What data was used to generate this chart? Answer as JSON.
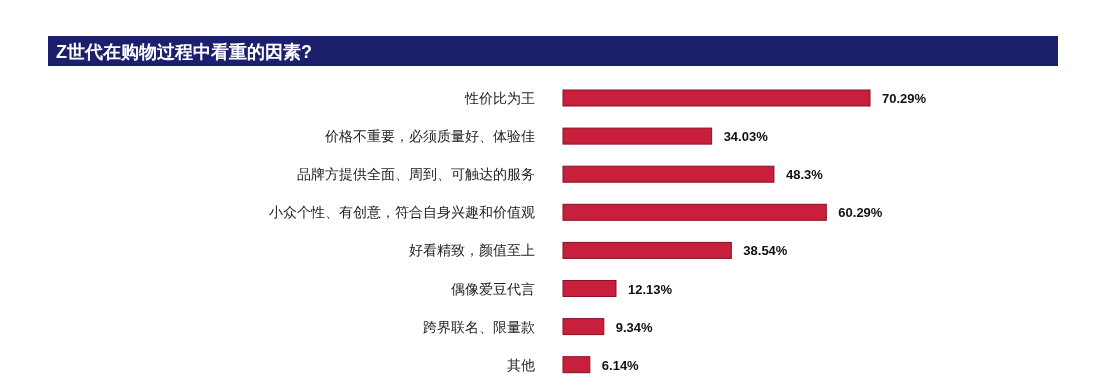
{
  "chart_data": {
    "type": "bar",
    "orientation": "horizontal",
    "title": "Z世代在购物过程中看重的因素?",
    "categories": [
      "性价比为王",
      "价格不重要，必须质量好、体验佳",
      "品牌方提供全面、周到、可触达的服务",
      "小众个性、有创意，符合自身兴趣和价值观",
      "好看精致，颜值至上",
      "偶像爱豆代言",
      "跨界联名、限量款",
      "其他"
    ],
    "values": [
      70.29,
      34.03,
      48.3,
      60.29,
      38.54,
      12.13,
      9.34,
      6.14
    ],
    "value_labels": [
      "70.29%",
      "34.03%",
      "48.3%",
      "60.29%",
      "38.54%",
      "12.13%",
      "9.34%",
      "6.14%"
    ],
    "color": "#c8203c"
  }
}
